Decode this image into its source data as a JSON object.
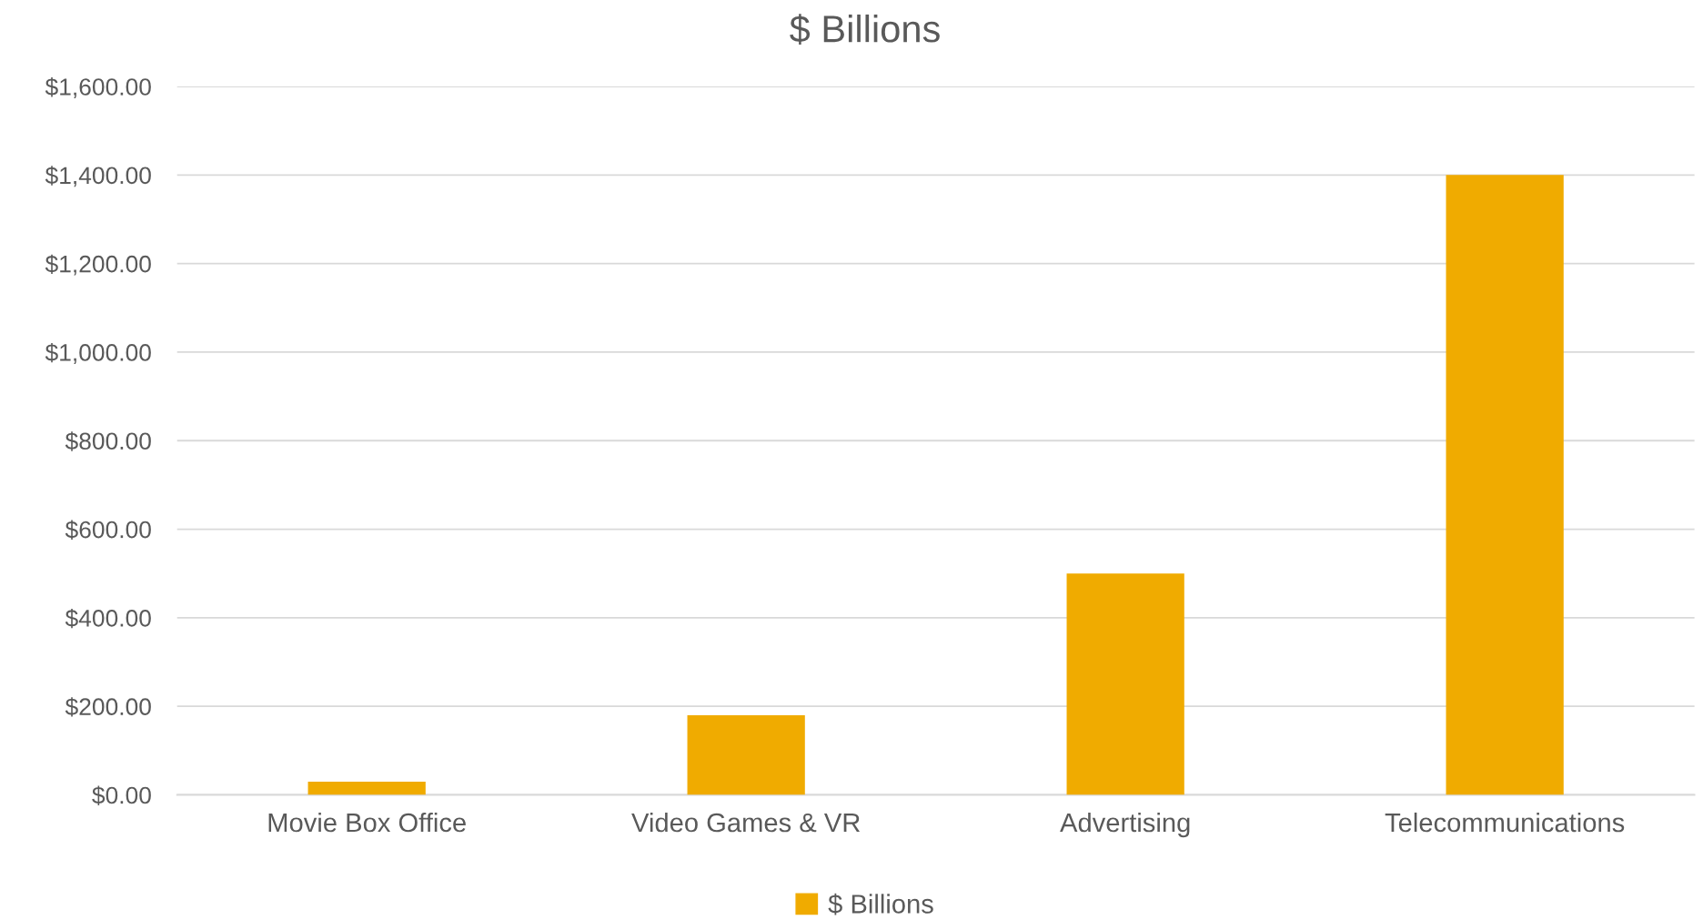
{
  "chart_data": {
    "type": "bar",
    "title": "$ Billions",
    "categories": [
      "Movie Box Office",
      "Video Games & VR",
      "Advertising",
      "Telecommunications"
    ],
    "series": [
      {
        "name": "$ Billions",
        "color": "#f0ab00",
        "values": [
          30,
          180,
          500,
          1400
        ]
      }
    ],
    "ylim": [
      0,
      1600
    ],
    "yticks": [
      {
        "value": 0,
        "label": "$0.00"
      },
      {
        "value": 200,
        "label": "$200.00"
      },
      {
        "value": 400,
        "label": "$400.00"
      },
      {
        "value": 600,
        "label": "$600.00"
      },
      {
        "value": 800,
        "label": "$800.00"
      },
      {
        "value": 1000,
        "label": "$1,000.00"
      },
      {
        "value": 1200,
        "label": "$1,200.00"
      },
      {
        "value": 1400,
        "label": "$1,400.00"
      },
      {
        "value": 1600,
        "label": "$1,600.00"
      }
    ],
    "grid": "y",
    "legend": "bottom"
  }
}
